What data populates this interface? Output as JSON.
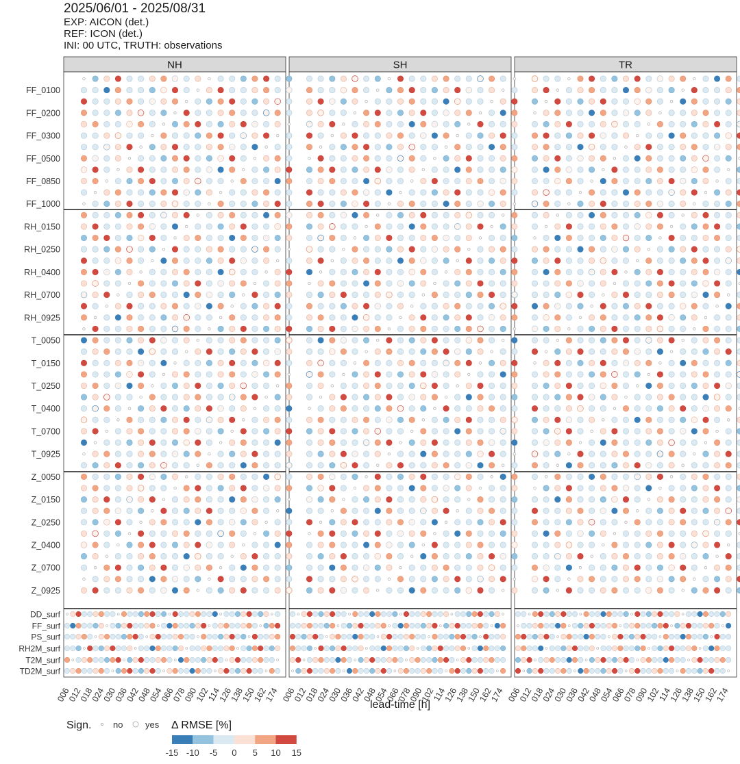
{
  "header": {
    "title": "2025/06/01 - 2025/08/31",
    "line1": "EXP: AICON (det.)",
    "line2": "REF: ICON (det.)",
    "line3": "INI: 00 UTC, TRUTH: observations"
  },
  "chart_data": {
    "type": "heatmap",
    "panels": [
      "NH",
      "SH",
      "TR"
    ],
    "y_labels": [
      "FF_0100",
      "FF_0200",
      "FF_0300",
      "FF_0500",
      "FF_0850",
      "FF_1000",
      "RH_0150",
      "RH_0250",
      "RH_0400",
      "RH_0700",
      "RH_0925",
      "T_0050",
      "T_0150",
      "T_0250",
      "T_0400",
      "T_0700",
      "T_0925",
      "Z_0050",
      "Z_0150",
      "Z_0250",
      "Z_0400",
      "Z_0700",
      "Z_0925",
      "DD_surf",
      "FF_surf",
      "PS_surf",
      "RH2M_surf",
      "T2M_surf",
      "TD2M_surf"
    ],
    "x_tick_labels": [
      "006",
      "012",
      "018",
      "024",
      "030",
      "036",
      "042",
      "048",
      "054",
      "066",
      "078",
      "090",
      "102",
      "114",
      "126",
      "138",
      "150",
      "162",
      "174"
    ],
    "xlabel": "lead-time [h]",
    "color_range": [
      -15,
      15
    ],
    "colors": {
      "-15": "#3a7eb8",
      "-10": "#93c3df",
      "-5": "#dbe9f2",
      "0": "#fbe0d5",
      "5": "#f2a583",
      "10": "#d1493f"
    },
    "significance_legend": {
      "title": "Sign.",
      "no": "no",
      "yes": "yes"
    },
    "color_legend": {
      "title": "Δ RMSE [%]",
      "ticks": [
        "-15",
        "-10",
        "-5",
        "0",
        "5",
        "10",
        "15"
      ]
    }
  }
}
